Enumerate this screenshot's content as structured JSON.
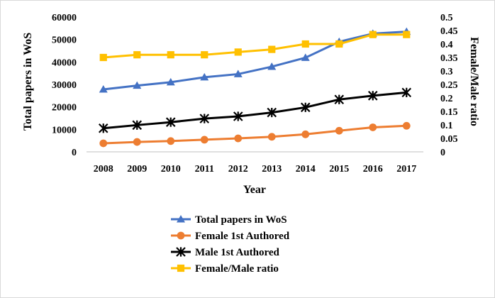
{
  "chart_data": {
    "type": "line",
    "categories": [
      "2008",
      "2009",
      "2010",
      "2011",
      "2012",
      "2013",
      "2014",
      "2015",
      "2016",
      "2017"
    ],
    "xlabel": "Year",
    "ylabel_left": "Total papers in WoS",
    "ylabel_right": "Female/Male ratio",
    "ylim_left": [
      0,
      60000
    ],
    "ylim_right": [
      0,
      0.5
    ],
    "yticks_left": [
      "0",
      "10000",
      "20000",
      "30000",
      "40000",
      "50000",
      "60000"
    ],
    "yticks_right": [
      "0",
      "0.05",
      "0.1",
      "0.15",
      "0.2",
      "0.25",
      "0.3",
      "0.35",
      "0.4",
      "0.45",
      "0.5"
    ],
    "grid": false,
    "legend_position": "bottom",
    "series": [
      {
        "name": "Total papers in WoS",
        "axis": "left",
        "marker": "triangle",
        "color": "#4472C4",
        "values": [
          27800,
          29500,
          31000,
          33200,
          34600,
          37900,
          41900,
          49000,
          52600,
          53500
        ]
      },
      {
        "name": "Female 1st Authored",
        "axis": "left",
        "marker": "circle",
        "color": "#ED7D31",
        "values": [
          3800,
          4400,
          4800,
          5400,
          6000,
          6700,
          7800,
          9400,
          10900,
          11600
        ]
      },
      {
        "name": "Male 1st Authored",
        "axis": "left",
        "marker": "star",
        "color": "#000000",
        "values": [
          10500,
          11900,
          13200,
          14800,
          15800,
          17500,
          19800,
          23300,
          25000,
          26400
        ]
      },
      {
        "name": "Female/Male ratio",
        "axis": "right",
        "marker": "square",
        "color": "#FFC000",
        "values": [
          0.35,
          0.36,
          0.36,
          0.36,
          0.37,
          0.38,
          0.4,
          0.4,
          0.435,
          0.435
        ]
      }
    ]
  }
}
